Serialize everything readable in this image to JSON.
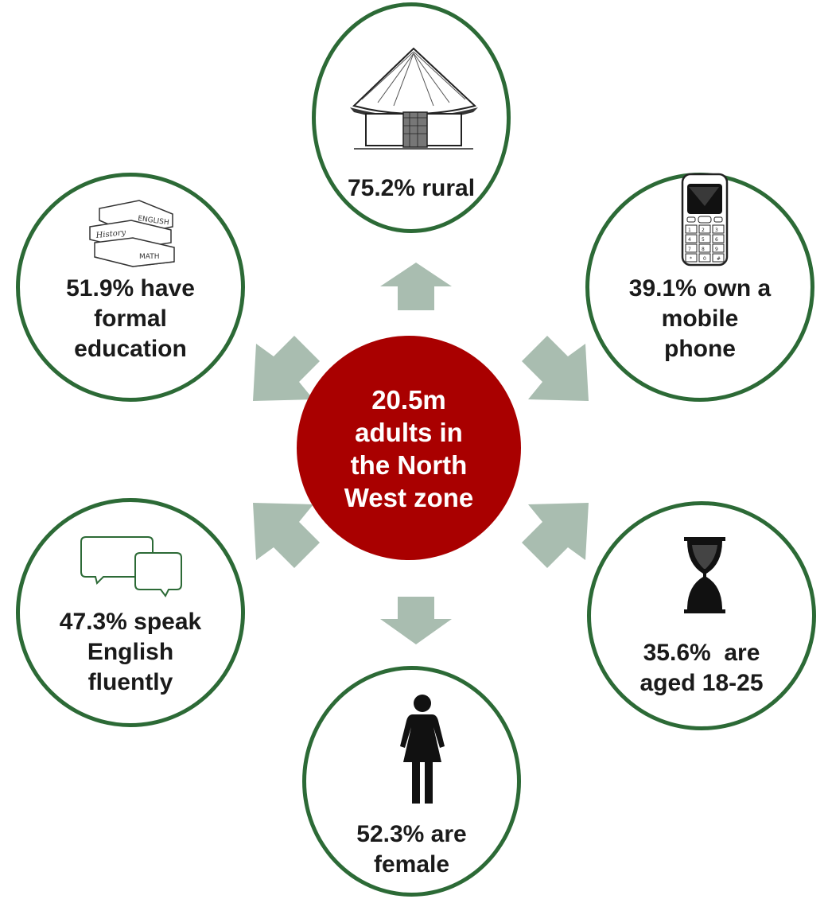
{
  "colors": {
    "ring": "#2c6a36",
    "center_fill": "#a90000",
    "arrow": "#a9bdb0",
    "text": "#1a1a1a",
    "center_text": "#ffffff"
  },
  "center": {
    "lines": [
      "20.5m",
      "adults in",
      "the North",
      "West zone"
    ]
  },
  "nodes": {
    "rural": {
      "icon": "hut-icon",
      "lines": [
        "75.2% rural"
      ]
    },
    "education": {
      "icon": "books-icon",
      "lines": [
        "51.9% have",
        "formal",
        "education"
      ]
    },
    "phone": {
      "icon": "mobile-phone-icon",
      "lines": [
        "39.1% own a",
        "mobile",
        "phone"
      ]
    },
    "english": {
      "icon": "speech-bubbles-icon",
      "lines": [
        "47.3% speak",
        "English",
        "fluently"
      ]
    },
    "age": {
      "icon": "hourglass-icon",
      "lines": [
        "35.6%  are",
        "aged 18-25"
      ]
    },
    "female": {
      "icon": "woman-icon",
      "lines": [
        "52.3% are",
        "female"
      ]
    }
  },
  "book_labels": [
    "ENGLISH",
    "History",
    "MATH"
  ],
  "keypad_keys": [
    "1",
    "2",
    "3",
    "4",
    "5",
    "6",
    "7",
    "8",
    "9",
    "*",
    "0",
    "#"
  ]
}
